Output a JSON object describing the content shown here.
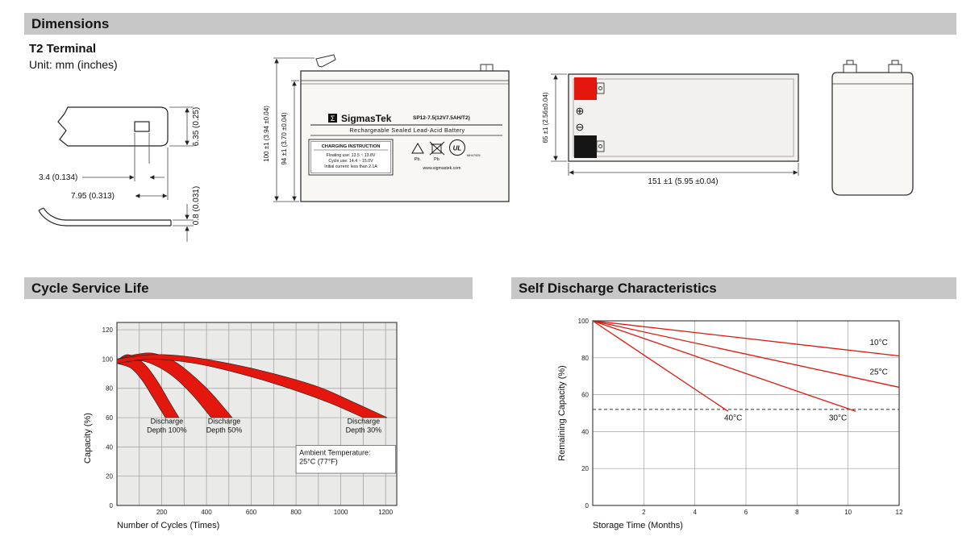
{
  "headers": {
    "dimensions": "Dimensions",
    "cycle_life": "Cycle Service Life",
    "self_discharge": "Self Discharge Characteristics"
  },
  "dimensions_section": {
    "terminal_type": "T2 Terminal",
    "unit_note": "Unit: mm (inches)",
    "terminal_drawing": {
      "dim_hole_width": "3.4 (0.134)",
      "dim_hole_offset": "7.95 (0.313)",
      "dim_tab_width": "6.35 (0.25)",
      "dim_tab_thickness": "0.8 (0.031)"
    },
    "front_view": {
      "logo_glyph": "Σ",
      "brand": "SigmasTek",
      "model": "SP12-7.5(12V7.5AH/T2)",
      "battery_type": "Rechargeable Sealed Lead-Acid Battery",
      "charging_box": {
        "title": "CHARGING INSTRUCTION",
        "line1": "Floating use: 13.5 ~ 13.8V",
        "line2": "Cycle use: 14.4 ~ 15.0V",
        "line3": "Initial current: less than 2.1A"
      },
      "pb_label1": "Pb.",
      "pb_label2": "Pb",
      "ul_text": "UL",
      "ul_code": "MH47925",
      "website": "www.sigmastek.com",
      "dim_height_overall": "100 ±1 (3.94 ±0.04)",
      "dim_height_case": "94 ±1 (3.70 ±0.04)"
    },
    "side_view": {
      "plus_symbol": "⊕",
      "minus_symbol": "⊖",
      "dim_height": "65 ±1 (2.56±0.04)",
      "dim_length": "151 ±1 (5.95 ±0.04)"
    }
  },
  "chart_data": [
    {
      "id": "cycle_life",
      "type": "area",
      "title": "Cycle Service Life",
      "xlabel": "Number of Cycles (Times)",
      "ylabel": "Capacity (%)",
      "xlim": [
        0,
        1250
      ],
      "ylim": [
        0,
        125
      ],
      "xticks": [
        200,
        400,
        600,
        800,
        1000,
        1200
      ],
      "yticks": [
        0,
        20,
        40,
        60,
        80,
        100,
        120
      ],
      "x_grid_step": 100,
      "y_grid_step": 20,
      "grid_on": true,
      "plot_bg": "#eaeae8",
      "grid_color": "#9b9b9b",
      "band_color": "#e3170d",
      "bands": [
        {
          "name": "Discharge Depth 100%",
          "upper": [
            [
              0,
              99
            ],
            [
              50,
              103
            ],
            [
              120,
              97
            ],
            [
              180,
              85
            ],
            [
              230,
              72
            ],
            [
              277,
              60
            ]
          ],
          "lower": [
            [
              0,
              97
            ],
            [
              60,
              94
            ],
            [
              110,
              86
            ],
            [
              160,
              74
            ],
            [
              200,
              64
            ],
            [
              216,
              60
            ]
          ]
        },
        {
          "name": "Discharge Depth 50%",
          "upper": [
            [
              0,
              100
            ],
            [
              80,
              103
            ],
            [
              160,
              104
            ],
            [
              250,
              99
            ],
            [
              330,
              90
            ],
            [
              420,
              77
            ],
            [
              515,
              60
            ]
          ],
          "lower": [
            [
              0,
              97
            ],
            [
              100,
              99
            ],
            [
              180,
              95
            ],
            [
              260,
              87
            ],
            [
              340,
              75
            ],
            [
              421,
              60
            ]
          ]
        },
        {
          "name": "Discharge Depth 30%",
          "upper": [
            [
              0,
              100
            ],
            [
              150,
              103
            ],
            [
              300,
              102
            ],
            [
              500,
              97
            ],
            [
              700,
              90
            ],
            [
              900,
              81
            ],
            [
              1050,
              71
            ],
            [
              1207,
              60
            ]
          ],
          "lower": [
            [
              0,
              97
            ],
            [
              150,
              100
            ],
            [
              350,
              97
            ],
            [
              550,
              90
            ],
            [
              750,
              81
            ],
            [
              950,
              70
            ],
            [
              1100,
              60
            ]
          ]
        }
      ],
      "labels": [
        {
          "lines": [
            "Discharge",
            "Depth 100%"
          ],
          "x": 223,
          "y": 56
        },
        {
          "lines": [
            "Discharge",
            "Depth 50%"
          ],
          "x": 479,
          "y": 56
        },
        {
          "lines": [
            "Discharge",
            "Depth 30%"
          ],
          "x": 1102,
          "y": 56
        }
      ],
      "note_box": {
        "lines": [
          "Ambient Temperature:",
          "25°C (77°F)"
        ],
        "x1": 800,
        "y1": 22,
        "x2": 1245,
        "y2": 41
      }
    },
    {
      "id": "self_discharge",
      "type": "line",
      "title": "Self Discharge Characteristics",
      "xlabel": "Storage Time (Months)",
      "ylabel": "Remaining Capacity (%)",
      "xlim": [
        0,
        12
      ],
      "ylim": [
        0,
        100
      ],
      "xticks": [
        2,
        4,
        6,
        8,
        10,
        12
      ],
      "yticks": [
        0,
        20,
        40,
        60,
        80,
        100
      ],
      "x_grid_step": 2,
      "y_grid_step": 20,
      "grid_on": true,
      "plot_bg": "#ffffff",
      "grid_color": "#9f9f9f",
      "line_color": "#e3170d",
      "series": [
        {
          "name": "10°C",
          "points": [
            [
              0,
              100
            ],
            [
              12,
              81
            ]
          ],
          "label_x": 11.2,
          "label_y": 87
        },
        {
          "name": "25°C",
          "points": [
            [
              0,
              100
            ],
            [
              12,
              64
            ]
          ],
          "label_x": 11.2,
          "label_y": 71
        },
        {
          "name": "30°C",
          "points": [
            [
              0,
              100
            ],
            [
              10.3,
              51
            ]
          ],
          "label_x": 9.6,
          "label_y": 46
        },
        {
          "name": "40°C",
          "points": [
            [
              0,
              100
            ],
            [
              5.3,
              51
            ]
          ],
          "label_x": 5.5,
          "label_y": 46
        }
      ],
      "ref_line_y": 52
    }
  ]
}
